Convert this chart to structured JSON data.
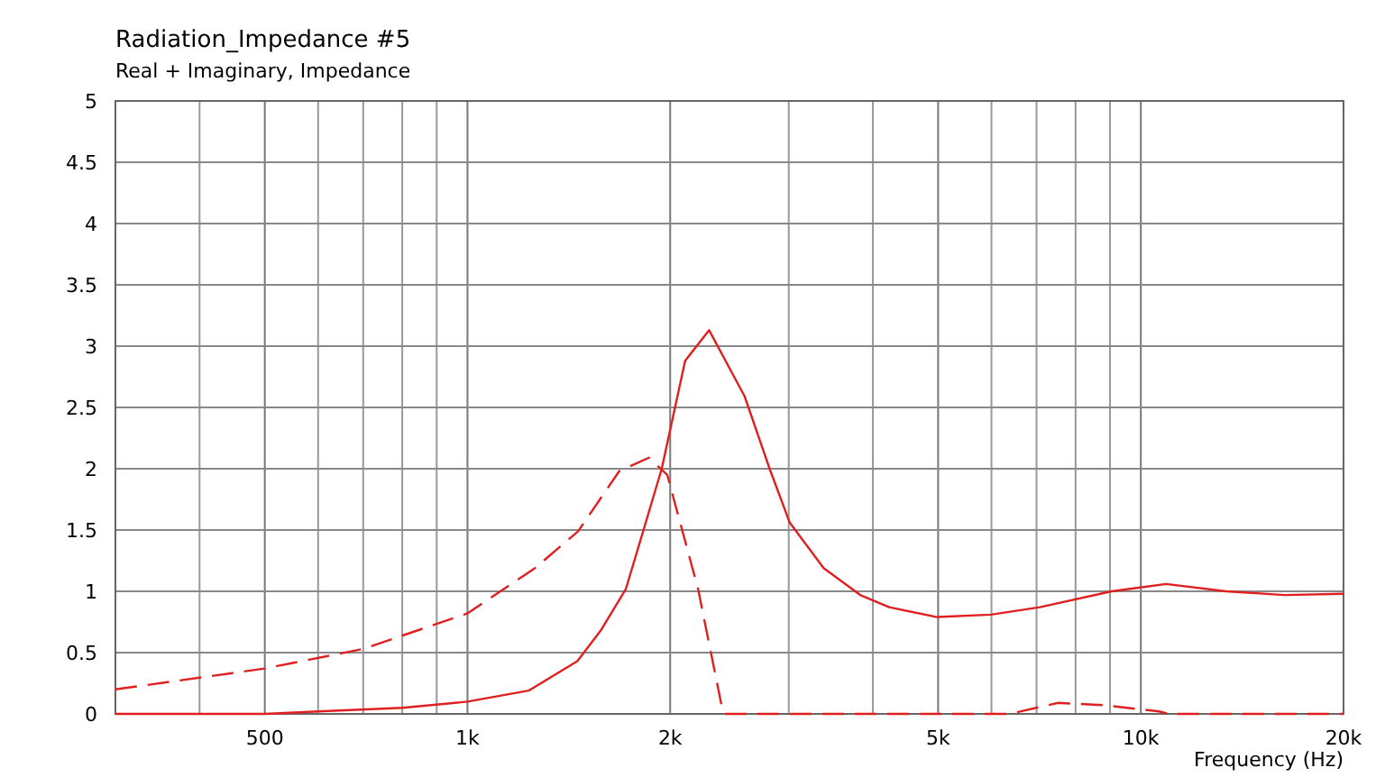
{
  "chart_data": {
    "type": "line",
    "title": "Radiation_Impedance #5",
    "subtitle": "Real + Imaginary, Impedance",
    "xlabel": "Frequency  (Hz)",
    "log": "x",
    "grid": true,
    "xlim": [
      300,
      20000
    ],
    "ylim": [
      0,
      5
    ],
    "xticks": [
      {
        "value": 300,
        "label": null
      },
      {
        "value": 400,
        "label": null
      },
      {
        "value": 500,
        "label": "500"
      },
      {
        "value": 600,
        "label": null
      },
      {
        "value": 700,
        "label": null
      },
      {
        "value": 800,
        "label": null
      },
      {
        "value": 900,
        "label": null
      },
      {
        "value": 1000,
        "label": "1k"
      },
      {
        "value": 2000,
        "label": "2k"
      },
      {
        "value": 3000,
        "label": null
      },
      {
        "value": 4000,
        "label": null
      },
      {
        "value": 5000,
        "label": "5k"
      },
      {
        "value": 6000,
        "label": null
      },
      {
        "value": 7000,
        "label": null
      },
      {
        "value": 8000,
        "label": null
      },
      {
        "value": 9000,
        "label": null
      },
      {
        "value": 10000,
        "label": "10k"
      },
      {
        "value": 20000,
        "label": "20k"
      }
    ],
    "yticks": [
      0,
      0.5,
      1,
      1.5,
      2,
      2.5,
      3,
      3.5,
      4,
      4.5,
      5
    ],
    "series": [
      {
        "color": "#e02020",
        "line_style": "solid",
        "x": [
          300,
          500,
          600,
          800,
          1000,
          1233,
          1456,
          1577,
          1719,
          1828,
          1943,
          2105,
          2285,
          2580,
          2810,
          3010,
          3380,
          3830,
          4230,
          4980,
          5990,
          7080,
          9050,
          10900,
          13380,
          16350,
          20000
        ],
        "values": [
          0,
          0,
          0.02,
          0.05,
          0.1,
          0.19,
          0.43,
          0.68,
          1.02,
          1.51,
          2.0,
          2.88,
          3.13,
          2.59,
          2.0,
          1.56,
          1.19,
          0.97,
          0.87,
          0.79,
          0.81,
          0.87,
          1.0,
          1.06,
          1.0,
          0.97,
          0.98
        ]
      },
      {
        "color": "#e02020",
        "line_style": "dashed",
        "x": [
          300,
          500,
          700,
          1000,
          1260,
          1460,
          1680,
          1860,
          1980,
          2200,
          2380,
          2410,
          6380,
          7540,
          8870,
          10640,
          11000,
          20000
        ],
        "values": [
          0.2,
          0.37,
          0.53,
          0.82,
          1.19,
          1.49,
          1.98,
          2.09,
          1.95,
          1.02,
          0.09,
          0,
          0,
          0.09,
          0.07,
          0.02,
          0,
          0
        ]
      }
    ]
  }
}
